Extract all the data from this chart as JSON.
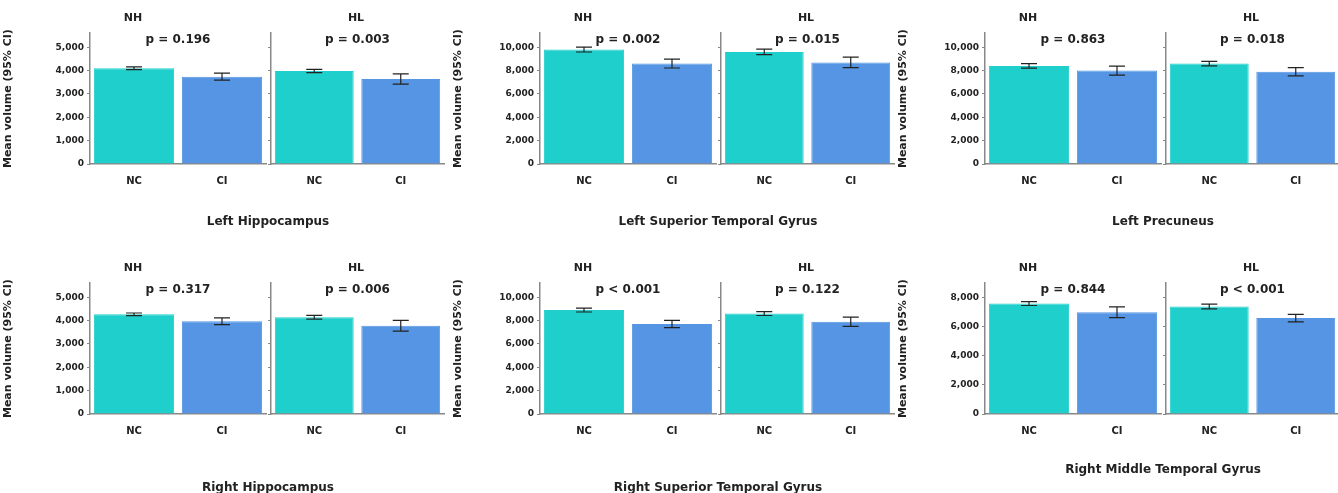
{
  "chart_data": [
    {
      "type": "bar",
      "title": "NH",
      "xlabel": "Left Hippocampus",
      "ylabel": "Mean volume (95% CI)",
      "categories": [
        "NC",
        "CI"
      ],
      "values": [
        4100,
        3740
      ],
      "errors": [
        60,
        150
      ],
      "colors": [
        "#1fcfcb",
        "#5595e3"
      ],
      "ylim": [
        0,
        5600
      ],
      "yticks": [
        0,
        {
          "value": 1000,
          "label": "1,000"
        },
        {
          "value": 2000,
          "label": "2,000"
        },
        {
          "value": 3000,
          "label": "3,000"
        },
        {
          "value": 4000,
          "label": "4,000"
        },
        {
          "value": 5000,
          "label": "5,000"
        }
      ],
      "annotations": [
        "p = 0.196"
      ]
    },
    {
      "type": "bar",
      "title": "HL",
      "categories": [
        "NC",
        "CI"
      ],
      "values": [
        3980,
        3640
      ],
      "errors": [
        70,
        220
      ],
      "colors": [
        "#1fcfcb",
        "#5595e3"
      ],
      "ylim": [
        0,
        5600
      ],
      "yticks": [
        0,
        1000,
        2000,
        3000,
        4000,
        5000
      ],
      "tick_labels": "x",
      "annotations": [
        "p = 0.003"
      ]
    },
    {
      "type": "bar",
      "title": "NH",
      "xlabel": "Left Superior Temporal Gyrus",
      "ylabel": "Mean volume (95% CI)",
      "categories": [
        "NC",
        "CI"
      ],
      "values": [
        9800,
        8600
      ],
      "errors": [
        210,
        380
      ],
      "colors": [
        "#1fcfcb",
        "#5595e3"
      ],
      "ylim": [
        0,
        11200
      ],
      "yticks": [
        0,
        {
          "value": 2000,
          "label": "2,000"
        },
        {
          "value": 4000,
          "label": "4,000"
        },
        {
          "value": 6000,
          "label": "6,000"
        },
        {
          "value": 8000,
          "label": "8,000"
        },
        {
          "value": 10000,
          "label": "10,000"
        }
      ],
      "annotations": [
        "p = 0.002"
      ]
    },
    {
      "type": "bar",
      "title": "HL",
      "categories": [
        "NC",
        "CI"
      ],
      "values": [
        9600,
        8700
      ],
      "errors": [
        230,
        450
      ],
      "colors": [
        "#1fcfcb",
        "#5595e3"
      ],
      "ylim": [
        0,
        11200
      ],
      "yticks": [
        0,
        2000,
        4000,
        6000,
        8000,
        10000
      ],
      "tick_labels": "x",
      "annotations": [
        "p = 0.015"
      ]
    },
    {
      "type": "bar",
      "title": "NH",
      "xlabel": "Left Precuneus",
      "ylabel": "Mean volume (95% CI)",
      "categories": [
        "NC",
        "CI"
      ],
      "values": [
        8400,
        8000
      ],
      "errors": [
        190,
        385
      ],
      "colors": [
        "#1fcfcb",
        "#5595e3"
      ],
      "ylim": [
        0,
        11200
      ],
      "yticks": [
        0,
        {
          "value": 2000,
          "label": "2,000"
        },
        {
          "value": 4000,
          "label": "4,000"
        },
        {
          "value": 6000,
          "label": "6,000"
        },
        {
          "value": 8000,
          "label": "8,000"
        },
        {
          "value": 10000,
          "label": "10,000"
        }
      ],
      "annotations": [
        "p = 0.863"
      ]
    },
    {
      "type": "bar",
      "title": "HL",
      "categories": [
        "NC",
        "CI"
      ],
      "values": [
        8600,
        7900
      ],
      "errors": [
        190,
        350
      ],
      "colors": [
        "#1fcfcb",
        "#5595e3"
      ],
      "ylim": [
        0,
        11200
      ],
      "yticks": [
        0,
        2000,
        4000,
        6000,
        8000,
        10000
      ],
      "tick_labels": "x",
      "annotations": [
        "p = 0.018"
      ]
    },
    {
      "type": "bar",
      "title": "NH",
      "xlabel": "Right Hippocampus",
      "ylabel": "Mean volume (95% CI)",
      "categories": [
        "NC",
        "CI"
      ],
      "values": [
        4270,
        3970
      ],
      "errors": [
        55,
        145
      ],
      "colors": [
        "#1fcfcb",
        "#5595e3"
      ],
      "ylim": [
        0,
        5600
      ],
      "yticks": [
        0,
        {
          "value": 1000,
          "label": "1,000"
        },
        {
          "value": 2000,
          "label": "2,000"
        },
        {
          "value": 3000,
          "label": "3,000"
        },
        {
          "value": 4000,
          "label": "4,000"
        },
        {
          "value": 5000,
          "label": "5,000"
        }
      ],
      "annotations": [
        "p = 0.317"
      ]
    },
    {
      "type": "bar",
      "title": "HL",
      "categories": [
        "NC",
        "CI"
      ],
      "values": [
        4140,
        3780
      ],
      "errors": [
        80,
        230
      ],
      "colors": [
        "#1fcfcb",
        "#5595e3"
      ],
      "ylim": [
        0,
        5600
      ],
      "yticks": [
        0,
        1000,
        2000,
        3000,
        4000,
        5000
      ],
      "tick_labels": "x",
      "annotations": [
        "p = 0.006"
      ]
    },
    {
      "type": "bar",
      "title": "NH",
      "xlabel": "Right Superior Temporal Gyrus",
      "ylabel": "Mean volume (95% CI)",
      "categories": [
        "NC",
        "CI"
      ],
      "values": [
        8900,
        7700
      ],
      "errors": [
        165,
        310
      ],
      "colors": [
        "#1fcfcb",
        "#5595e3"
      ],
      "ylim": [
        0,
        11200
      ],
      "yticks": [
        0,
        {
          "value": 2000,
          "label": "2,000"
        },
        {
          "value": 4000,
          "label": "4,000"
        },
        {
          "value": 6000,
          "label": "6,000"
        },
        {
          "value": 8000,
          "label": "8,000"
        },
        {
          "value": 10000,
          "label": "10,000"
        }
      ],
      "annotations": [
        "p < 0.001"
      ]
    },
    {
      "type": "bar",
      "title": "HL",
      "categories": [
        "NC",
        "CI"
      ],
      "values": [
        8600,
        7900
      ],
      "errors": [
        165,
        390
      ],
      "colors": [
        "#1fcfcb",
        "#5595e3"
      ],
      "ylim": [
        0,
        11200
      ],
      "yticks": [
        0,
        2000,
        4000,
        6000,
        8000,
        10000
      ],
      "tick_labels": "x",
      "annotations": [
        "p = 0.122"
      ]
    },
    {
      "type": "bar",
      "title": "NH",
      "xlabel": "Right Middle Temporal Gyrus",
      "ylabel": "Mean volume (95% CI)",
      "categories": [
        "NC",
        "CI"
      ],
      "values": [
        7600,
        7000
      ],
      "errors": [
        135,
        365
      ],
      "colors": [
        "#1fcfcb",
        "#5595e3"
      ],
      "ylim": [
        0,
        9000
      ],
      "yticks": [
        0,
        {
          "value": 2000,
          "label": "2,000"
        },
        {
          "value": 4000,
          "label": "4,000"
        },
        {
          "value": 6000,
          "label": "6,000"
        },
        {
          "value": 8000,
          "label": "8,000"
        }
      ],
      "annotations": [
        "p = 0.844"
      ]
    },
    {
      "type": "bar",
      "title": "HL",
      "categories": [
        "NC",
        "CI"
      ],
      "values": [
        7400,
        6600
      ],
      "errors": [
        165,
        260
      ],
      "colors": [
        "#1fcfcb",
        "#5595e3"
      ],
      "ylim": [
        0,
        9000
      ],
      "yticks": [
        0,
        2000,
        4000,
        6000,
        8000
      ],
      "tick_labels": "x",
      "annotations": [
        "p < 0.001"
      ]
    }
  ]
}
